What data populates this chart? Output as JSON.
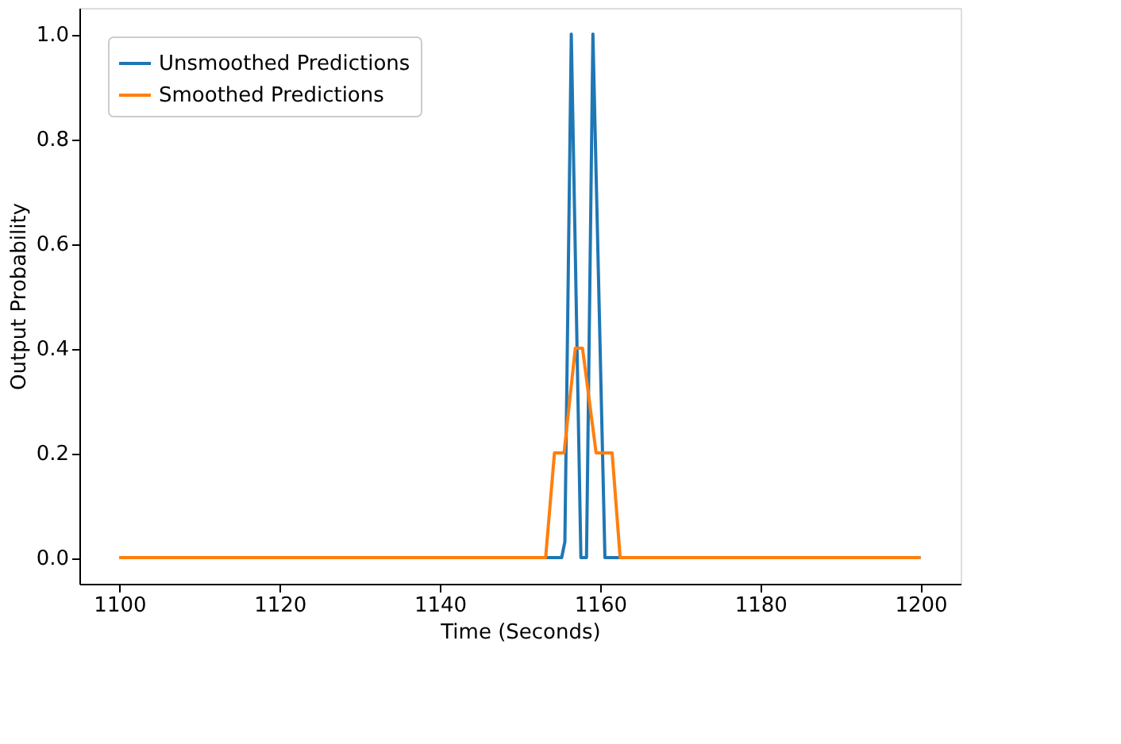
{
  "chart_data": {
    "type": "line",
    "xlabel": "Time (Seconds)",
    "ylabel": "Output Probability",
    "xlim": [
      1095,
      1205
    ],
    "xticks": [
      1100,
      1120,
      1140,
      1160,
      1180,
      1200
    ],
    "ylim": [
      -0.05,
      1.05
    ],
    "yticks": [
      {
        "value": 0,
        "label": "0.0"
      },
      {
        "value": 0.2,
        "label": "0.2"
      },
      {
        "value": 0.4,
        "label": "0.4"
      },
      {
        "value": 0.6,
        "label": "0.6"
      },
      {
        "value": 0.8,
        "label": "0.8"
      },
      {
        "value": 1,
        "label": "1.0"
      }
    ],
    "grid": false,
    "legend": "top left",
    "series": [
      {
        "name": "Unsmoothed Predictions",
        "color": "#1f77b4",
        "x": [
          1100,
          1155.2,
          1155.6,
          1156.4,
          1157.6,
          1158.3,
          1159.1,
          1160.6,
          1200
        ],
        "values": [
          0,
          0,
          0.03,
          1.0,
          0,
          0,
          1.0,
          0,
          0
        ]
      },
      {
        "name": "Smoothed Predictions",
        "color": "#ff7f0e",
        "x": [
          1100,
          1153.2,
          1154.3,
          1155.5,
          1156.9,
          1157.8,
          1159.5,
          1161.5,
          1162.5,
          1200
        ],
        "values": [
          0,
          0,
          0.2,
          0.2,
          0.4,
          0.4,
          0.2,
          0.2,
          0,
          0
        ]
      }
    ]
  }
}
